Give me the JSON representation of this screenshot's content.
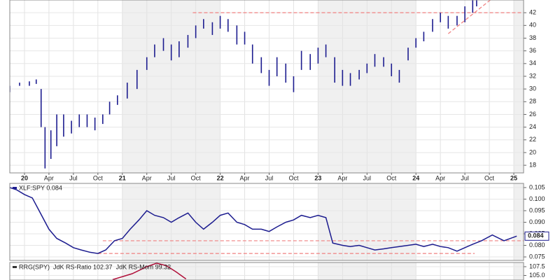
{
  "chart_data": [
    {
      "type": "ohlc",
      "color": "#1c1c8f",
      "xlim": [
        2019.85,
        2025.1
      ],
      "ylim": [
        16.8,
        44
      ],
      "xticks": [
        {
          "value": 2020,
          "label": "20"
        },
        {
          "value": 2020.25,
          "label": "Apr"
        },
        {
          "value": 2020.5,
          "label": "Jul"
        },
        {
          "value": 2020.75,
          "label": "Oct"
        },
        {
          "value": 2021,
          "label": "21"
        },
        {
          "value": 2021.25,
          "label": "Apr"
        },
        {
          "value": 2021.5,
          "label": "Jul"
        },
        {
          "value": 2021.75,
          "label": "Oct"
        },
        {
          "value": 2022,
          "label": "22"
        },
        {
          "value": 2022.25,
          "label": "Apr"
        },
        {
          "value": 2022.5,
          "label": "Jul"
        },
        {
          "value": 2022.75,
          "label": "Oct"
        },
        {
          "value": 2023,
          "label": "23"
        },
        {
          "value": 2023.25,
          "label": "Apr"
        },
        {
          "value": 2023.5,
          "label": "Jul"
        },
        {
          "value": 2023.75,
          "label": "Oct"
        },
        {
          "value": 2024,
          "label": "24"
        },
        {
          "value": 2024.25,
          "label": "Apr"
        },
        {
          "value": 2024.5,
          "label": "Jul"
        },
        {
          "value": 2024.75,
          "label": "Oct"
        },
        {
          "value": 2025,
          "label": "25"
        }
      ],
      "yticks": [
        18,
        20,
        22,
        24,
        26,
        28,
        30,
        32,
        34,
        36,
        38,
        40,
        42
      ],
      "x": [
        2019.85,
        2019.95,
        2020.05,
        2020.12,
        2020.17,
        2020.21,
        2020.27,
        2020.33,
        2020.4,
        2020.48,
        2020.56,
        2020.64,
        2020.72,
        2020.8,
        2020.87,
        2020.95,
        2021.05,
        2021.15,
        2021.25,
        2021.33,
        2021.42,
        2021.5,
        2021.58,
        2021.67,
        2021.75,
        2021.83,
        2021.92,
        2022.0,
        2022.08,
        2022.17,
        2022.25,
        2022.33,
        2022.42,
        2022.5,
        2022.58,
        2022.67,
        2022.75,
        2022.83,
        2022.92,
        2023.0,
        2023.08,
        2023.17,
        2023.25,
        2023.33,
        2023.42,
        2023.5,
        2023.58,
        2023.67,
        2023.75,
        2023.83,
        2023.92,
        2024.0,
        2024.08,
        2024.17,
        2024.25,
        2024.33,
        2024.42,
        2024.5,
        2024.58,
        2024.62
      ],
      "high": [
        30.5,
        31,
        31.2,
        31.5,
        30,
        24,
        23.5,
        26,
        26,
        25,
        26,
        26,
        25.5,
        26,
        28,
        29,
        31,
        33,
        35,
        37,
        38,
        37,
        37.5,
        38.5,
        40,
        41,
        40.5,
        41.5,
        41,
        40,
        39,
        37,
        35,
        33,
        35,
        34,
        32,
        36,
        35.5,
        36.5,
        37,
        35,
        33,
        32.5,
        33,
        34,
        35.5,
        35,
        34,
        33,
        36.5,
        38,
        39,
        41,
        42,
        41.5,
        41.5,
        43,
        45,
        45
      ],
      "low": [
        29.5,
        30.5,
        30.5,
        30.8,
        24,
        17.5,
        19,
        21,
        22.5,
        23,
        24,
        24,
        23.5,
        24.5,
        26,
        27.5,
        28.5,
        30,
        33,
        35,
        36,
        34.5,
        35,
        36.5,
        38,
        39.5,
        38.5,
        39.5,
        39,
        37,
        37,
        34,
        32.5,
        30.5,
        32,
        31,
        29.5,
        33,
        33,
        34,
        35,
        31,
        30.5,
        30.5,
        31.5,
        32.5,
        33.5,
        33.5,
        32,
        31,
        34.5,
        36.5,
        37.5,
        39,
        40.5,
        39.5,
        40,
        40.5,
        42,
        43
      ],
      "hlines": [
        {
          "value": 42,
          "from": 2021.72,
          "to": 2025.1
        }
      ],
      "trendline": {
        "x": [
          2024.33,
          2024.76
        ],
        "y": [
          38.7,
          44
        ]
      },
      "line_color": "#f08080"
    },
    {
      "type": "line",
      "xlim": [
        2019.85,
        2025.1
      ],
      "ylim": [
        0.0735,
        0.1068
      ],
      "yticks": [
        0.105,
        {
          "value": 0.1,
          "label": "0.100"
        },
        0.095,
        {
          "value": 0.09,
          "label": "0.090"
        },
        0.085,
        {
          "value": 0.08,
          "label": "0.080"
        },
        0.075
      ],
      "series": [
        {
          "name": "XLF:SPY 0.084",
          "color": "#1c1c8f",
          "x": [
            2019.85,
            2019.92,
            2020.0,
            2020.08,
            2020.15,
            2020.25,
            2020.33,
            2020.42,
            2020.5,
            2020.58,
            2020.67,
            2020.75,
            2020.83,
            2020.92,
            2021.0,
            2021.08,
            2021.17,
            2021.25,
            2021.33,
            2021.42,
            2021.5,
            2021.58,
            2021.67,
            2021.75,
            2021.83,
            2021.92,
            2022.0,
            2022.08,
            2022.17,
            2022.25,
            2022.33,
            2022.42,
            2022.5,
            2022.58,
            2022.67,
            2022.75,
            2022.83,
            2022.92,
            2023.0,
            2023.08,
            2023.15,
            2023.25,
            2023.33,
            2023.42,
            2023.5,
            2023.58,
            2023.67,
            2023.75,
            2023.83,
            2023.92,
            2024.0,
            2024.08,
            2024.17,
            2024.25,
            2024.33,
            2024.42,
            2024.5,
            2024.58,
            2024.67,
            2024.78,
            2024.9,
            2025.03
          ],
          "values": [
            0.105,
            0.104,
            0.102,
            0.1005,
            0.095,
            0.087,
            0.083,
            0.081,
            0.079,
            0.078,
            0.077,
            0.0765,
            0.078,
            0.082,
            0.083,
            0.087,
            0.091,
            0.095,
            0.093,
            0.092,
            0.09,
            0.092,
            0.094,
            0.09,
            0.087,
            0.09,
            0.093,
            0.094,
            0.09,
            0.089,
            0.087,
            0.087,
            0.086,
            0.088,
            0.09,
            0.091,
            0.093,
            0.092,
            0.093,
            0.092,
            0.081,
            0.08,
            0.0795,
            0.08,
            0.079,
            0.078,
            0.0785,
            0.079,
            0.0795,
            0.08,
            0.0805,
            0.0795,
            0.0805,
            0.0795,
            0.079,
            0.0775,
            0.079,
            0.0805,
            0.082,
            0.0845,
            0.082,
            0.084
          ]
        }
      ],
      "last_value_label": "0.084",
      "hlines": [
        {
          "value": 0.082,
          "from": 2020.8,
          "to": 2025.1
        },
        {
          "value": 0.0765,
          "from": 2020.75,
          "to": 2024.6
        }
      ],
      "line_color": "#f08080"
    },
    {
      "type": "line",
      "xlim": [
        2019.85,
        2025.1
      ],
      "ylim": [
        103.7,
        108.7
      ],
      "legend_title": "RRG(SPY)",
      "yticks": [
        107.5,
        {
          "value": 105,
          "label": "105.0"
        }
      ],
      "series": [
        {
          "name": "JdK RS-Ratio 102.37",
          "color": "#b0103a",
          "x": [
            2020.9,
            2021.1,
            2021.25,
            2021.35,
            2021.45,
            2021.55,
            2021.65
          ],
          "values": [
            103.8,
            105.5,
            107.5,
            108.5,
            107.8,
            106,
            104
          ]
        },
        {
          "name": "JdK RS-Mom 99.32",
          "color": "#1a8f2a",
          "x": [],
          "values": []
        }
      ]
    }
  ]
}
